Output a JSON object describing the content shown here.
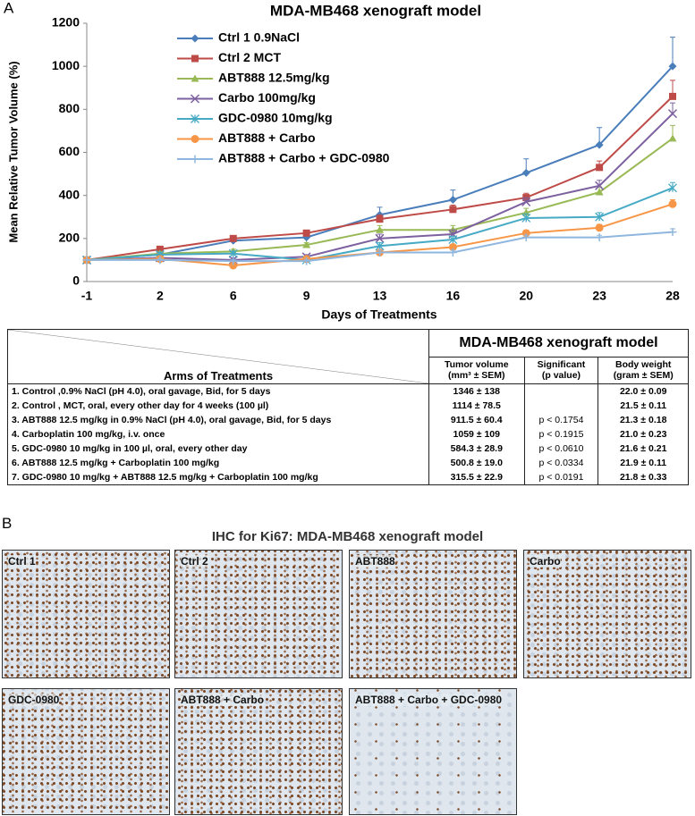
{
  "panel_a_label": "A",
  "chart_data": {
    "type": "line",
    "title": "MDA-MB468 xenograft model",
    "x_label": "Days of Treatments",
    "y_label": "Mean Relative Tumor Volume (%)",
    "categories": [
      "-1",
      "2",
      "6",
      "9",
      "13",
      "16",
      "20",
      "23",
      "28"
    ],
    "ylim": [
      0,
      1200
    ],
    "yticks": [
      0,
      200,
      400,
      600,
      800,
      1000,
      1200
    ],
    "grid": false,
    "series": [
      {
        "name": "Ctrl 1 0.9NaCl",
        "color": "#4a7ebb",
        "marker": "diamond",
        "values": [
          100,
          125,
          190,
          205,
          310,
          380,
          505,
          635,
          1000
        ],
        "errors": [
          0,
          15,
          15,
          15,
          35,
          45,
          65,
          80,
          135
        ]
      },
      {
        "name": "Ctrl 2 MCT",
        "color": "#be4b48",
        "marker": "square",
        "values": [
          100,
          150,
          200,
          225,
          290,
          335,
          390,
          530,
          860
        ],
        "errors": [
          0,
          10,
          10,
          10,
          20,
          20,
          20,
          30,
          75
        ]
      },
      {
        "name": "ABT888 12.5mg/kg",
        "color": "#98b954",
        "marker": "triangle",
        "values": [
          100,
          130,
          140,
          170,
          240,
          240,
          320,
          415,
          665
        ],
        "errors": [
          0,
          10,
          10,
          10,
          20,
          20,
          20,
          25,
          60
        ]
      },
      {
        "name": "Carbo 100mg/kg",
        "color": "#7d60a0",
        "marker": "x",
        "values": [
          100,
          110,
          100,
          115,
          200,
          220,
          370,
          445,
          780
        ],
        "errors": [
          0,
          10,
          10,
          10,
          20,
          20,
          20,
          25,
          50
        ]
      },
      {
        "name": "GDC-0980 10mg/kg",
        "color": "#46aac5",
        "marker": "star",
        "values": [
          100,
          125,
          130,
          100,
          165,
          195,
          295,
          300,
          435
        ],
        "errors": [
          0,
          10,
          10,
          10,
          15,
          15,
          20,
          20,
          25
        ]
      },
      {
        "name": "ABT888 + Carbo",
        "color": "#f79646",
        "marker": "circle",
        "values": [
          100,
          105,
          75,
          105,
          135,
          160,
          225,
          250,
          360
        ],
        "errors": [
          0,
          8,
          8,
          8,
          12,
          12,
          12,
          15,
          20
        ]
      },
      {
        "name": "ABT888 + Carbo + GDC-0980",
        "color": "#8fb6de",
        "marker": "plus",
        "values": [
          100,
          100,
          95,
          95,
          135,
          135,
          205,
          205,
          230
        ],
        "errors": [
          0,
          8,
          8,
          8,
          10,
          10,
          10,
          10,
          15
        ]
      }
    ]
  },
  "table": {
    "title": "MDA-MB468 xenograft model",
    "header": [
      "Arms of Treatments",
      "Tumor volume",
      "(mm³ ± SEM)",
      "Significant",
      "(p value)",
      "Body weight",
      "(gram ± SEM)"
    ],
    "rows": [
      [
        "1. Control ,0.9% NaCl (pH 4.0), oral gavage, Bid, for 5 days",
        "1346 ± 138",
        "",
        "22.0 ± 0.09"
      ],
      [
        "2. Control , MCT, oral, every other day for 4 weeks (100 µl)",
        "1114 ± 78.5",
        "",
        "21.5 ± 0.11"
      ],
      [
        "3. ABT888 12.5 mg/kg in 0.9% NaCl (pH 4.0), oral gavage, Bid, for 5 days",
        "911.5 ± 60.4",
        "p < 0.1754",
        "21.3 ± 0.18"
      ],
      [
        "4. Carboplatin 100 mg/kg, i.v. once",
        "1059 ± 109",
        "p < 0.1915",
        "21.0 ± 0.23"
      ],
      [
        "5. GDC-0980 10 mg/kg in 100 µl, oral, every other day",
        "584.3 ± 28.9",
        "p < 0.0610",
        "21.6 ± 0.21"
      ],
      [
        "6. ABT888 12.5 mg/kg + Carboplatin 100 mg/kg",
        "500.8 ± 19.0",
        "p < 0.0334",
        "21.9 ± 0.11"
      ],
      [
        "7. GDC-0980 10 mg/kg + ABT888 12.5 mg/kg + Carboplatin 100 mg/kg",
        "315.5 ± 22.9",
        "p < 0.0191",
        "21.8 ± 0.33"
      ]
    ]
  },
  "panel_b": {
    "label": "B",
    "title": "IHC for Ki67: MDA-MB468 xenograft model",
    "images": [
      "Ctrl 1",
      "Ctrl 2",
      "ABT888",
      "Carbo",
      "GDC-0980",
      "ABT888 + Carbo",
      "ABT888 + Carbo + GDC-0980"
    ]
  }
}
